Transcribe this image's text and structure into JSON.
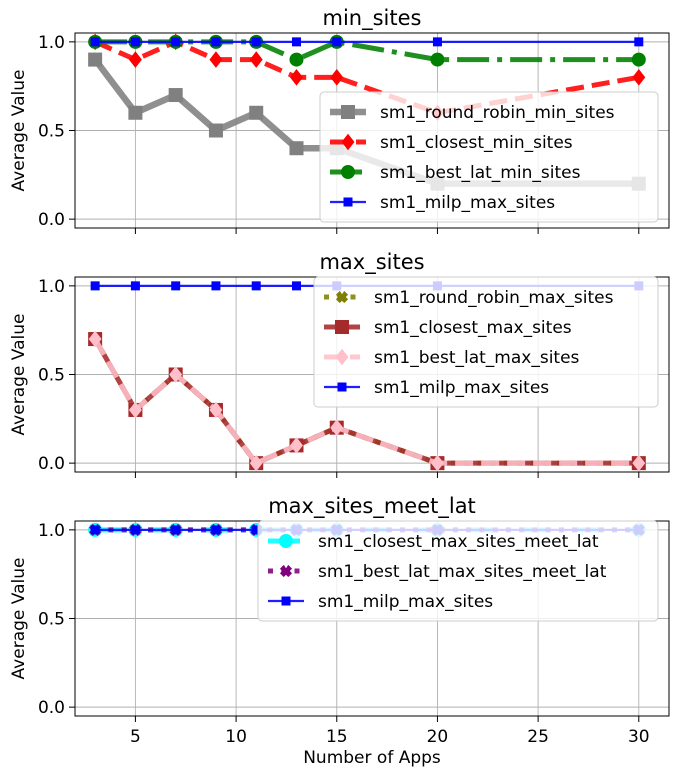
{
  "chart_data": [
    {
      "type": "line",
      "title": "min_sites",
      "ylabel": "Average Value",
      "xlabel": "",
      "xlim": [
        2,
        31.5
      ],
      "ylim": [
        -0.05,
        1.05
      ],
      "xticks": [
        5,
        10,
        15,
        20,
        25,
        30
      ],
      "xtick_labels": [
        "5",
        "10",
        "15",
        "20",
        "25",
        "30"
      ],
      "show_xtick_labels": false,
      "yticks": [
        0.0,
        0.5,
        1.0
      ],
      "ytick_labels": [
        "0.0",
        "0.5",
        "1.0"
      ],
      "grid": true,
      "legend_position": "bottom-right",
      "x": [
        3,
        5,
        7,
        9,
        11,
        13,
        15,
        20,
        30
      ],
      "series": [
        {
          "name": "sm1_round_robin_min_sites",
          "color": "#808080",
          "style": "solid",
          "marker": "square",
          "values": [
            0.9,
            0.6,
            0.7,
            0.5,
            0.6,
            0.4,
            0.4,
            0.2,
            0.2
          ]
        },
        {
          "name": "sm1_closest_min_sites",
          "color": "#ff0000",
          "style": "dashed",
          "marker": "diamond",
          "values": [
            1.0,
            0.9,
            1.0,
            0.9,
            0.9,
            0.8,
            0.8,
            0.6,
            0.8
          ]
        },
        {
          "name": "sm1_best_lat_min_sites",
          "color": "#008000",
          "style": "dashdot",
          "marker": "circle",
          "values": [
            1.0,
            1.0,
            1.0,
            1.0,
            1.0,
            0.9,
            1.0,
            0.9,
            0.9
          ]
        },
        {
          "name": "sm1_milp_max_sites",
          "color": "#0000ff",
          "style": "solid",
          "marker": "small-square",
          "values": [
            1.0,
            1.0,
            1.0,
            1.0,
            1.0,
            1.0,
            1.0,
            1.0,
            1.0
          ]
        }
      ]
    },
    {
      "type": "line",
      "title": "max_sites",
      "ylabel": "Average Value",
      "xlabel": "",
      "xlim": [
        2,
        31.5
      ],
      "ylim": [
        -0.05,
        1.05
      ],
      "xticks": [
        5,
        10,
        15,
        20,
        25,
        30
      ],
      "xtick_labels": [
        "5",
        "10",
        "15",
        "20",
        "25",
        "30"
      ],
      "show_xtick_labels": false,
      "yticks": [
        0.0,
        0.5,
        1.0
      ],
      "ytick_labels": [
        "0.0",
        "0.5",
        "1.0"
      ],
      "grid": true,
      "legend_position": "top-right",
      "x": [
        3,
        5,
        7,
        9,
        11,
        13,
        15,
        20,
        30
      ],
      "series": [
        {
          "name": "sm1_round_robin_max_sites",
          "color": "#808000",
          "style": "dotted",
          "marker": "x",
          "values": [
            0.7,
            0.3,
            0.5,
            0.3,
            0.0,
            0.1,
            0.2,
            0.0,
            0.0
          ]
        },
        {
          "name": "sm1_closest_max_sites",
          "color": "#a52a2a",
          "style": "solid",
          "marker": "square",
          "values": [
            0.7,
            0.3,
            0.5,
            0.3,
            0.0,
            0.1,
            0.2,
            0.0,
            0.0
          ]
        },
        {
          "name": "sm1_best_lat_max_sites",
          "color": "#ffc0cb",
          "style": "dashed",
          "marker": "diamond",
          "values": [
            0.7,
            0.3,
            0.5,
            0.3,
            0.0,
            0.1,
            0.2,
            0.0,
            0.0
          ]
        },
        {
          "name": "sm1_milp_max_sites",
          "color": "#0000ff",
          "style": "solid",
          "marker": "small-square",
          "values": [
            1.0,
            1.0,
            1.0,
            1.0,
            1.0,
            1.0,
            1.0,
            1.0,
            1.0
          ]
        }
      ]
    },
    {
      "type": "line",
      "title": "max_sites_meet_lat",
      "ylabel": "Average Value",
      "xlabel": "Number of Apps",
      "xlim": [
        2,
        31.5
      ],
      "ylim": [
        -0.05,
        1.05
      ],
      "xticks": [
        5,
        10,
        15,
        20,
        25,
        30
      ],
      "xtick_labels": [
        "5",
        "10",
        "15",
        "20",
        "25",
        "30"
      ],
      "show_xtick_labels": true,
      "yticks": [
        0.0,
        0.5,
        1.0
      ],
      "ytick_labels": [
        "0.0",
        "0.5",
        "1.0"
      ],
      "grid": true,
      "legend_position": "top-right",
      "x": [
        3,
        5,
        7,
        9,
        11,
        13,
        15,
        20,
        30
      ],
      "series": [
        {
          "name": "sm1_closest_max_sites_meet_lat",
          "color": "#00ffff",
          "style": "dashdot",
          "marker": "circle",
          "values": [
            1.0,
            1.0,
            1.0,
            1.0,
            1.0,
            1.0,
            1.0,
            1.0,
            1.0
          ]
        },
        {
          "name": "sm1_best_lat_max_sites_meet_lat",
          "color": "#800080",
          "style": "dotted",
          "marker": "x",
          "values": [
            1.0,
            1.0,
            1.0,
            1.0,
            1.0,
            1.0,
            1.0,
            1.0,
            1.0
          ]
        },
        {
          "name": "sm1_milp_max_sites",
          "color": "#0000ff",
          "style": "solid",
          "marker": "small-square",
          "values": [
            1.0,
            1.0,
            1.0,
            1.0,
            1.0,
            1.0,
            1.0,
            1.0,
            1.0
          ]
        }
      ]
    }
  ]
}
